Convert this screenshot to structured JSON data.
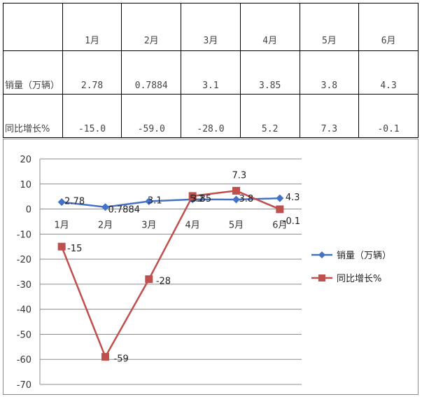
{
  "table": {
    "headers": [
      "",
      "1月",
      "2月",
      "3月",
      "4月",
      "5月",
      "6月"
    ],
    "rows": [
      {
        "label": "销量（万辆）",
        "cells": [
          "2.78",
          "0.7884",
          "3.1",
          "3.85",
          "3.8",
          "4.3"
        ]
      },
      {
        "label": "同比增长%",
        "cells": [
          "-15.0",
          "-59.0",
          "-28.0",
          "5.2",
          "7.3",
          "-0.1"
        ]
      }
    ]
  },
  "chart_data": {
    "type": "line",
    "categories": [
      "1月",
      "2月",
      "3月",
      "4月",
      "5月",
      "6月"
    ],
    "series": [
      {
        "name": "销量（万辆）",
        "values": [
          2.78,
          0.7884,
          3.1,
          3.85,
          3.8,
          4.3
        ],
        "labels": [
          "2.78",
          "0.7884",
          "3.1",
          "3.85",
          "3.8",
          "4.3"
        ],
        "color": "#4472C4",
        "marker": "diamond"
      },
      {
        "name": "同比增长%",
        "values": [
          -15,
          -59,
          -28,
          5.2,
          7.3,
          -0.1
        ],
        "labels": [
          "-15",
          "-59",
          "-28",
          "5.2",
          "7.3",
          "-0.1"
        ],
        "color": "#C0504D",
        "marker": "square"
      }
    ],
    "ylim": [
      -70,
      20
    ],
    "yticks": [
      20,
      10,
      0,
      -10,
      -20,
      -30,
      -40,
      -50,
      -60,
      -70
    ],
    "grid": true,
    "legend": "right"
  }
}
